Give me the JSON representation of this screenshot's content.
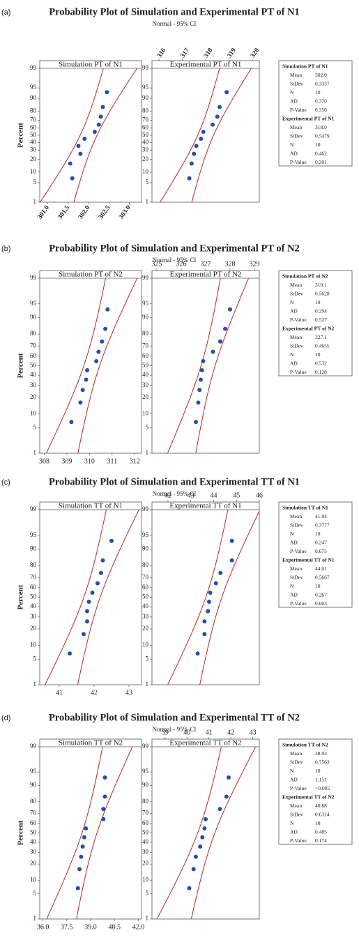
{
  "chart_data": [
    {
      "type": "probability",
      "label": "(a)",
      "title": "Probability Plot of Simulation and Experimental PT of N1",
      "subtitle": "Normal - 95% CI",
      "ylabel": "Percent",
      "ylim": [
        1,
        99
      ],
      "yticks": [
        1,
        5,
        10,
        20,
        30,
        40,
        50,
        60,
        70,
        80,
        90,
        95,
        99
      ],
      "subplots": [
        {
          "title": "Simulation PT of N1",
          "axis_position": "bottom",
          "xlim": [
            300.8,
            303.3
          ],
          "xticks": [
            {
              "value": 301,
              "label": "301.0"
            },
            {
              "value": 301.5,
              "label": "301.5"
            },
            {
              "value": 302,
              "label": "302.0"
            },
            {
              "value": 302.5,
              "label": "302.5"
            },
            {
              "value": 303,
              "label": "303.0"
            }
          ],
          "x": [
            301.6,
            301.55,
            301.8,
            301.75,
            301.9,
            302.15,
            302.25,
            302.3,
            302.35,
            302.45
          ],
          "y": [
            6.73,
            16.35,
            25.96,
            35.58,
            45.19,
            54.81,
            64.42,
            74.04,
            83.65,
            93.27
          ],
          "color": "#2a4ea0",
          "ci_color": "#b8232b"
        },
        {
          "title": "Experimental PT of N1",
          "axis_position": "top",
          "xlim": [
            315.7,
            320.3
          ],
          "xticks": [
            316,
            317,
            318,
            319,
            320
          ],
          "x": [
            317.3,
            317.4,
            317.5,
            317.6,
            317.8,
            317.9,
            318.3,
            318.5,
            318.6,
            318.9
          ],
          "y": [
            6.73,
            16.35,
            25.96,
            35.58,
            45.19,
            54.81,
            64.42,
            74.04,
            83.65,
            93.27
          ],
          "color": "#2a4ea0",
          "ci_color": "#b8232b"
        }
      ],
      "stats": [
        {
          "heading": "Simulation PT of N1",
          "rows": [
            {
              "name": "Mean",
              "value": 302.0,
              "label": "302.0"
            },
            {
              "name": "StDev",
              "value": 0.3337,
              "label": "0.3337"
            },
            {
              "name": "N",
              "value": 10,
              "label": "10"
            },
            {
              "name": "AD",
              "value": 0.37,
              "label": "0.370"
            },
            {
              "name": "P-Value",
              "value": 0.35,
              "label": "0.350"
            }
          ]
        },
        {
          "heading": "Experimental PT of N1",
          "rows": [
            {
              "name": "Mean",
              "value": 318.0,
              "label": "318.0"
            },
            {
              "name": "StDev",
              "value": 0.5479,
              "label": "0.5479"
            },
            {
              "name": "N",
              "value": 10,
              "label": "10"
            },
            {
              "name": "AD",
              "value": 0.462,
              "label": "0.462"
            },
            {
              "name": "P-Value",
              "value": 0.201,
              "label": "0.201"
            }
          ]
        }
      ]
    },
    {
      "type": "probability",
      "label": "(b)",
      "title": "Probability Plot of Simulation and Experimental PT of N2",
      "subtitle": "Normal - 95% CI",
      "ylabel": "Percent",
      "ylim": [
        1,
        99
      ],
      "yticks": [
        1,
        5,
        10,
        20,
        30,
        40,
        50,
        60,
        70,
        80,
        90,
        95,
        99
      ],
      "subplots": [
        {
          "title": "Simulation PT of N2",
          "axis_position": "bottom",
          "xlim": [
            307.8,
            312.3
          ],
          "xticks": [
            308,
            309,
            310,
            311,
            312
          ],
          "x": [
            309.2,
            309.6,
            309.7,
            309.85,
            309.9,
            310.3,
            310.4,
            310.55,
            310.7,
            310.8
          ],
          "y": [
            6.73,
            16.35,
            25.96,
            35.58,
            45.19,
            54.81,
            64.42,
            74.04,
            83.65,
            93.27
          ],
          "color": "#2a4ea0",
          "ci_color": "#b8232b"
        },
        {
          "title": "Experimental PT of N2",
          "axis_position": "top",
          "xlim": [
            324.8,
            329.2
          ],
          "xticks": [
            325,
            326,
            327,
            328,
            329
          ],
          "x": [
            326.6,
            326.7,
            326.75,
            326.8,
            326.85,
            326.9,
            327.3,
            327.6,
            327.8,
            328.0
          ],
          "y": [
            6.73,
            16.35,
            25.96,
            35.58,
            45.19,
            54.81,
            64.42,
            74.04,
            83.65,
            93.27
          ],
          "color": "#2a4ea0",
          "ci_color": "#b8232b"
        }
      ],
      "stats": [
        {
          "heading": "Simulation PT of N2",
          "rows": [
            {
              "name": "Mean",
              "value": 310.1,
              "label": "310.1"
            },
            {
              "name": "StDev",
              "value": 0.5628,
              "label": "0.5628"
            },
            {
              "name": "N",
              "value": 10,
              "label": "10"
            },
            {
              "name": "AD",
              "value": 0.294,
              "label": "0.294"
            },
            {
              "name": "P-Value",
              "value": 0.527,
              "label": "0.527"
            }
          ]
        },
        {
          "heading": "Experimental PT of N2",
          "rows": [
            {
              "name": "Mean",
              "value": 327.1,
              "label": "327.1"
            },
            {
              "name": "StDev",
              "value": 0.4655,
              "label": "0.4655"
            },
            {
              "name": "N",
              "value": 10,
              "label": "10"
            },
            {
              "name": "AD",
              "value": 0.532,
              "label": "0.532"
            },
            {
              "name": "P-Value",
              "value": 0.128,
              "label": "0.128"
            }
          ]
        }
      ]
    },
    {
      "type": "probability",
      "label": "(c)",
      "title": "Probability Plot of Simulation and Experimental TT of N1",
      "subtitle": "Normal - 95% CI",
      "ylabel": "Percent",
      "ylim": [
        1,
        99
      ],
      "yticks": [
        1,
        5,
        10,
        20,
        30,
        40,
        50,
        60,
        70,
        80,
        90,
        95,
        99
      ],
      "subplots": [
        {
          "title": "Simulation TT of N1",
          "axis_position": "bottom",
          "xlim": [
            40.44,
            43.36
          ],
          "xticks": [
            41,
            42,
            43
          ],
          "x": [
            41.3,
            41.7,
            41.8,
            41.8,
            41.85,
            41.95,
            42.1,
            42.2,
            42.25,
            42.5
          ],
          "y": [
            6.73,
            16.35,
            25.96,
            35.58,
            45.19,
            54.81,
            64.42,
            74.04,
            83.65,
            93.27
          ],
          "color": "#2a4ea0",
          "ci_color": "#b8232b"
        },
        {
          "title": "Experimental TT of N1",
          "axis_position": "top",
          "xlim": [
            41.3,
            46.0
          ],
          "xticks": [
            42,
            43,
            44,
            45,
            46
          ],
          "x": [
            43.3,
            43.6,
            43.6,
            43.75,
            43.8,
            43.85,
            44.1,
            44.3,
            44.8,
            44.8
          ],
          "y": [
            6.73,
            16.35,
            25.96,
            35.58,
            45.19,
            54.81,
            64.42,
            74.04,
            83.65,
            93.27
          ],
          "color": "#2a4ea0",
          "ci_color": "#b8232b"
        }
      ],
      "stats": [
        {
          "heading": "Simulation TT of N1",
          "rows": [
            {
              "name": "Mean",
              "value": 41.94,
              "label": "41.94"
            },
            {
              "name": "StDev",
              "value": 0.3777,
              "label": "0.3777"
            },
            {
              "name": "N",
              "value": 10,
              "label": "10"
            },
            {
              "name": "AD",
              "value": 0.247,
              "label": "0.247"
            },
            {
              "name": "P-Value",
              "value": 0.675,
              "label": "0.675"
            }
          ]
        },
        {
          "heading": "Experimental TT of N1",
          "rows": [
            {
              "name": "Mean",
              "value": 44.01,
              "label": "44.01"
            },
            {
              "name": "StDev",
              "value": 0.5667,
              "label": "0.5667"
            },
            {
              "name": "N",
              "value": 10,
              "label": "10"
            },
            {
              "name": "AD",
              "value": 0.267,
              "label": "0.267"
            },
            {
              "name": "P-Value",
              "value": 0.603,
              "label": "0.603"
            }
          ]
        }
      ]
    },
    {
      "type": "probability",
      "label": "(d)",
      "title": "Probability Plot of Simulation and Experimental TT of N2",
      "subtitle": "Normal - 95% CI",
      "ylabel": "Percent",
      "ylim": [
        1,
        99
      ],
      "yticks": [
        1,
        5,
        10,
        20,
        30,
        40,
        50,
        60,
        70,
        80,
        90,
        95,
        99
      ],
      "subplots": [
        {
          "title": "Simulation TT of N2",
          "axis_position": "bottom",
          "xlim": [
            35.8,
            42.2
          ],
          "xticks": [
            {
              "value": 36,
              "label": "36.0"
            },
            37.5,
            {
              "value": 39,
              "label": "39.0"
            },
            40.5,
            {
              "value": 42,
              "label": "42.0"
            }
          ],
          "x": [
            38.2,
            38.3,
            38.4,
            38.5,
            38.6,
            38.7,
            39.8,
            39.8,
            39.9,
            39.9
          ],
          "y": [
            6.73,
            16.35,
            25.96,
            35.58,
            45.19,
            54.81,
            64.42,
            74.04,
            83.65,
            93.27
          ],
          "color": "#2a4ea0",
          "ci_color": "#b8232b"
        },
        {
          "title": "Experimental TT of N2",
          "axis_position": "top",
          "xlim": [
            38.4,
            43.3
          ],
          "xticks": [
            39,
            40,
            41,
            42,
            43
          ],
          "x": [
            40.1,
            40.3,
            40.4,
            40.6,
            40.7,
            40.8,
            40.85,
            41.5,
            41.8,
            41.9
          ],
          "y": [
            6.73,
            16.35,
            25.96,
            35.58,
            45.19,
            54.81,
            64.42,
            74.04,
            83.65,
            93.27
          ],
          "color": "#2a4ea0",
          "ci_color": "#b8232b"
        }
      ],
      "stats": [
        {
          "heading": "Simulation TT of N2",
          "rows": [
            {
              "name": "Mean",
              "value": 38.93,
              "label": "38.93"
            },
            {
              "name": "StDev",
              "value": 0.7563,
              "label": "0.7563"
            },
            {
              "name": "N",
              "value": 10,
              "label": "10"
            },
            {
              "name": "AD",
              "value": 1.151,
              "label": "1.151"
            },
            {
              "name": "P-Value",
              "label": "<0.005"
            }
          ]
        },
        {
          "heading": "Experimental TT of N2",
          "rows": [
            {
              "name": "Mean",
              "value": 40.88,
              "label": "40.88"
            },
            {
              "name": "StDev",
              "value": 0.6314,
              "label": "0.6314"
            },
            {
              "name": "N",
              "value": 10,
              "label": "10"
            },
            {
              "name": "AD",
              "value": 0.485,
              "label": "0.485"
            },
            {
              "name": "P-Value",
              "value": 0.174,
              "label": "0.174"
            }
          ]
        }
      ]
    }
  ]
}
